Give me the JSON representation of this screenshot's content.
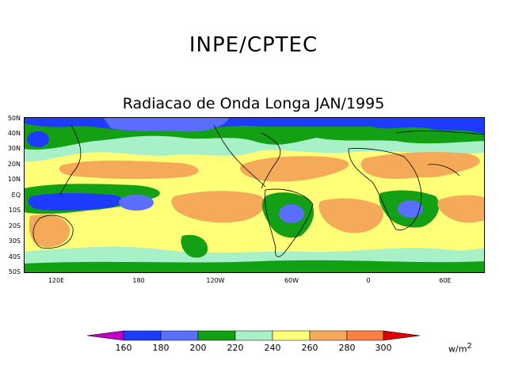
{
  "header": "INPE/CPTEC",
  "title": "Radiacao de Onda Longa JAN/1995",
  "lat_labels": [
    "50N",
    "40N",
    "30N",
    "20N",
    "10N",
    "EQ",
    "10S",
    "20S",
    "30S",
    "40S",
    "50S"
  ],
  "lon_labels": [
    "120E",
    "180",
    "120W",
    "60W",
    "0",
    "60E"
  ],
  "colorbar": {
    "levels": [
      "160",
      "180",
      "200",
      "220",
      "240",
      "260",
      "280",
      "300"
    ],
    "colors": [
      "#c000c0",
      "#1e3cff",
      "#5a6eff",
      "#14a014",
      "#a8f0c8",
      "#ffff78",
      "#f5aa5a",
      "#ff8040",
      "#e00000"
    ],
    "units": "w/m",
    "units_exp": "2"
  }
}
